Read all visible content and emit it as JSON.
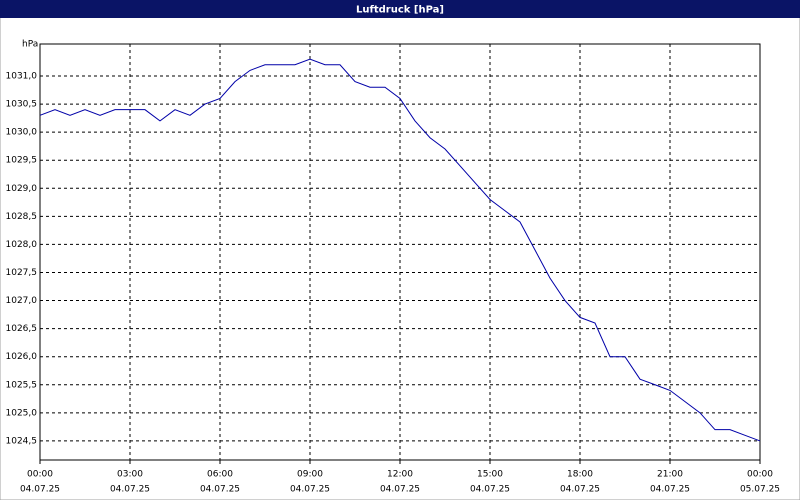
{
  "chart_data": {
    "type": "line",
    "title": "Luftdruck [hPa]",
    "y_label": "hPa",
    "x": [
      0,
      0.5,
      1,
      1.5,
      2,
      2.5,
      3,
      3.5,
      4,
      4.5,
      5,
      5.5,
      6,
      6.5,
      7,
      7.5,
      8,
      8.5,
      9,
      9.5,
      10,
      10.5,
      11,
      11.5,
      12,
      12.5,
      13,
      13.5,
      14,
      14.5,
      15,
      15.5,
      16,
      16.5,
      17,
      17.5,
      18,
      18.5,
      19,
      19.5,
      20,
      20.5,
      21,
      21.5,
      22,
      22.5,
      23,
      23.5,
      24
    ],
    "series": [
      {
        "name": "Luftdruck",
        "color": "#0000a8",
        "values": [
          1030.3,
          1030.4,
          1030.3,
          1030.4,
          1030.3,
          1030.4,
          1030.4,
          1030.4,
          1030.2,
          1030.4,
          1030.3,
          1030.5,
          1030.6,
          1030.9,
          1031.1,
          1031.2,
          1031.2,
          1031.2,
          1031.3,
          1031.2,
          1031.2,
          1030.9,
          1030.8,
          1030.8,
          1030.6,
          1030.2,
          1029.9,
          1029.7,
          1029.4,
          1029.1,
          1028.8,
          1028.6,
          1028.4,
          1027.9,
          1027.4,
          1027.0,
          1026.7,
          1026.6,
          1026.0,
          1026.0,
          1025.6,
          1025.5,
          1025.4,
          1025.2,
          1025.0,
          1024.7,
          1024.7,
          1024.6,
          1024.5
        ]
      }
    ],
    "xlim": [
      0,
      24
    ],
    "xticks": [
      {
        "value": 0,
        "label": "00:00"
      },
      {
        "value": 3,
        "label": "03:00"
      },
      {
        "value": 6,
        "label": "06:00"
      },
      {
        "value": 9,
        "label": "09:00"
      },
      {
        "value": 12,
        "label": "12:00"
      },
      {
        "value": 15,
        "label": "15:00"
      },
      {
        "value": 18,
        "label": "18:00"
      },
      {
        "value": 21,
        "label": "21:00"
      },
      {
        "value": 24,
        "label": "00:00"
      }
    ],
    "xtick_dates": [
      "04.07.25",
      "04.07.25",
      "04.07.25",
      "04.07.25",
      "04.07.25",
      "04.07.25",
      "04.07.25",
      "04.07.25",
      "05.07.25"
    ],
    "ylim": [
      1024.16,
      1031.57
    ],
    "yticks": [
      {
        "value": 1024.5,
        "label": "1024,5"
      },
      {
        "value": 1025,
        "label": "1025,0"
      },
      {
        "value": 1025.5,
        "label": "1025,5"
      },
      {
        "value": 1026,
        "label": "1026,0"
      },
      {
        "value": 1026.5,
        "label": "1026,5"
      },
      {
        "value": 1027,
        "label": "1027,0"
      },
      {
        "value": 1027.5,
        "label": "1027,5"
      },
      {
        "value": 1028,
        "label": "1028,0"
      },
      {
        "value": 1028.5,
        "label": "1028,5"
      },
      {
        "value": 1029,
        "label": "1029,0"
      },
      {
        "value": 1029.5,
        "label": "1029,5"
      },
      {
        "value": 1030,
        "label": "1030,0"
      },
      {
        "value": 1030.5,
        "label": "1030,5"
      },
      {
        "value": 1031,
        "label": "1031,0"
      }
    ],
    "grid": true
  }
}
